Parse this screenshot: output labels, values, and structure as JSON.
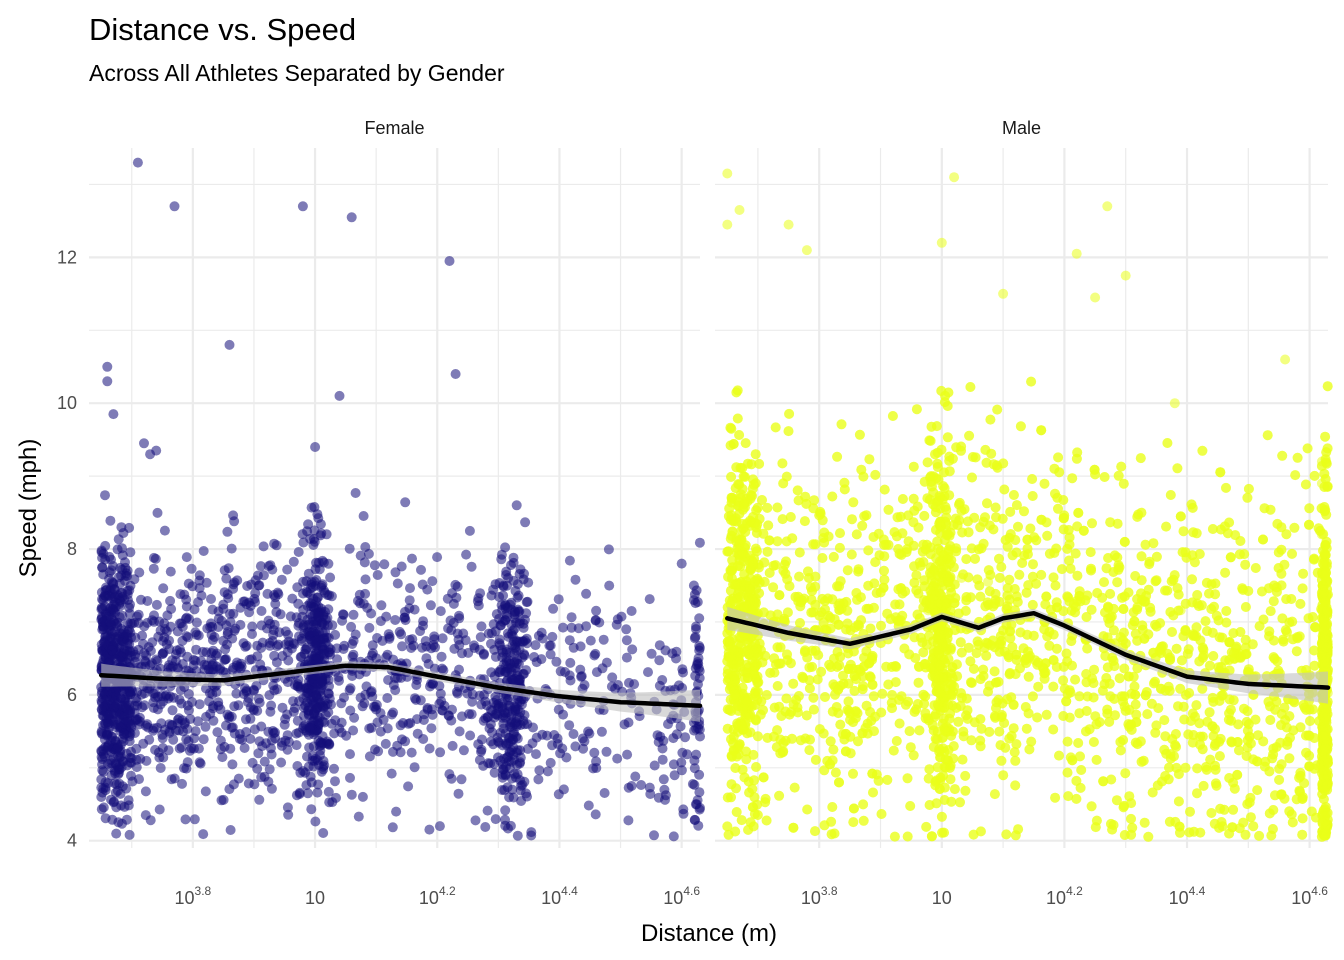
{
  "chart_data": {
    "type": "scatter",
    "title": "Distance vs. Speed",
    "subtitle": "Across All Athletes Separated by Gender",
    "xlabel": "Distance (m)",
    "ylabel": "Speed (mph)",
    "x_scale": "log10",
    "xlim_log10": [
      3.63,
      4.63
    ],
    "ylim": [
      3.9,
      13.5
    ],
    "x_ticks": [
      {
        "base": "10",
        "exp": "3.8",
        "log10": 3.8
      },
      {
        "base": "10",
        "exp": "",
        "log10": 4.0
      },
      {
        "base": "10",
        "exp": "4.2",
        "log10": 4.2
      },
      {
        "base": "10",
        "exp": "4.4",
        "log10": 4.4
      },
      {
        "base": "10",
        "exp": "4.6",
        "log10": 4.6
      }
    ],
    "y_ticks": [
      4,
      6,
      8,
      10,
      12
    ],
    "grid": true,
    "legend": "none",
    "smoother_color": "#000000",
    "band_color": "#bfbfbf",
    "panels": [
      {
        "name": "Female",
        "point_color": "#140f7a",
        "point_opacity": 0.55,
        "points_notable": [
          [
            3.71,
            13.3
          ],
          [
            3.77,
            12.7
          ],
          [
            3.98,
            12.7
          ],
          [
            4.06,
            12.55
          ],
          [
            4.22,
            11.95
          ],
          [
            3.86,
            10.8
          ],
          [
            4.23,
            10.4
          ],
          [
            3.66,
            10.5
          ],
          [
            3.66,
            10.3
          ],
          [
            4.04,
            10.1
          ],
          [
            3.67,
            9.85
          ],
          [
            4.0,
            9.4
          ],
          [
            3.72,
            9.45
          ],
          [
            3.73,
            9.3
          ],
          [
            3.74,
            9.35
          ],
          [
            4.33,
            8.6
          ],
          [
            4.6,
            7.8
          ],
          [
            4.62,
            7.5
          ],
          [
            4.62,
            7.3
          ],
          [
            4.63,
            4.45
          ]
        ],
        "smooth": {
          "x": [
            3.65,
            3.75,
            3.85,
            3.95,
            4.05,
            4.12,
            4.2,
            4.3,
            4.4,
            4.5,
            4.63
          ],
          "y": [
            6.27,
            6.22,
            6.2,
            6.3,
            6.4,
            6.38,
            6.25,
            6.1,
            5.98,
            5.9,
            5.85
          ]
        }
      },
      {
        "name": "Male",
        "point_color": "#eaff1a",
        "point_opacity": 0.55,
        "points_notable": [
          [
            3.65,
            13.15
          ],
          [
            3.65,
            12.45
          ],
          [
            3.67,
            12.65
          ],
          [
            3.75,
            12.45
          ],
          [
            3.78,
            12.1
          ],
          [
            4.02,
            13.1
          ],
          [
            4.22,
            12.05
          ],
          [
            4.25,
            11.45
          ],
          [
            4.27,
            12.7
          ],
          [
            4.3,
            11.75
          ],
          [
            4.56,
            10.6
          ],
          [
            4.38,
            10.0
          ],
          [
            4.1,
            11.5
          ],
          [
            4.0,
            12.2
          ],
          [
            4.62,
            9.2
          ],
          [
            4.62,
            8.9
          ],
          [
            4.62,
            8.2
          ]
        ],
        "smooth": {
          "x": [
            3.65,
            3.75,
            3.85,
            3.95,
            4.0,
            4.06,
            4.1,
            4.15,
            4.2,
            4.3,
            4.4,
            4.5,
            4.63
          ],
          "y": [
            7.05,
            6.85,
            6.7,
            6.9,
            7.07,
            6.92,
            7.05,
            7.12,
            6.95,
            6.55,
            6.25,
            6.15,
            6.1
          ]
        }
      }
    ]
  }
}
